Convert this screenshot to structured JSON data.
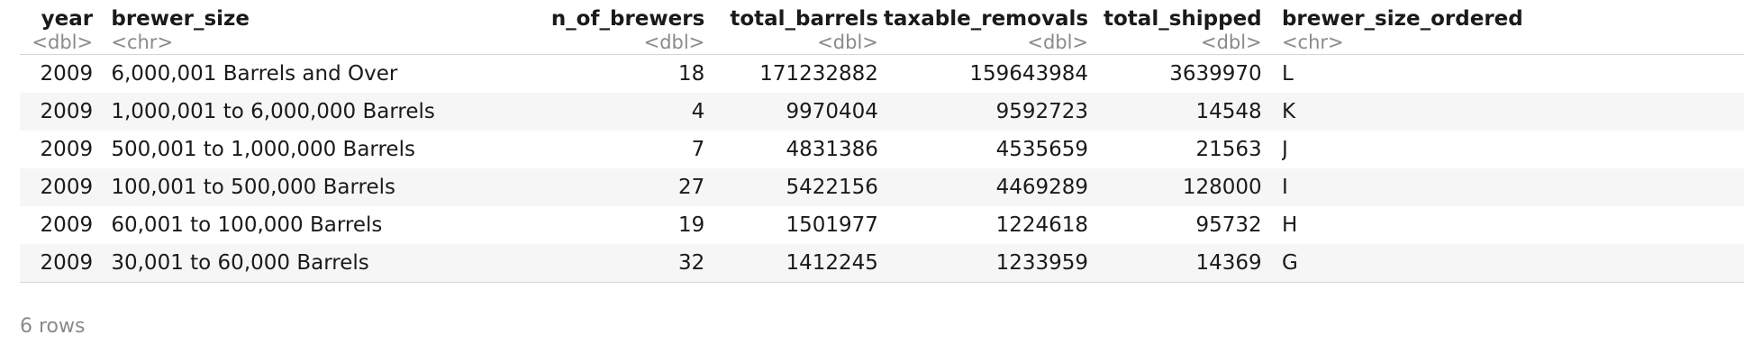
{
  "columns": [
    {
      "name": "year",
      "type": "<dbl>"
    },
    {
      "name": "brewer_size",
      "type": "<chr>"
    },
    {
      "name": "n_of_brewers",
      "type": "<dbl>"
    },
    {
      "name": "total_barrels",
      "type": "<dbl>"
    },
    {
      "name": "taxable_removals",
      "type": "<dbl>"
    },
    {
      "name": "total_shipped",
      "type": "<dbl>"
    },
    {
      "name": "brewer_size_ordered",
      "type": "<chr>"
    }
  ],
  "rows": [
    [
      "2009",
      "6,000,001 Barrels and Over",
      "18",
      "171232882",
      "159643984",
      "3639970",
      "L"
    ],
    [
      "2009",
      "1,000,001 to 6,000,000 Barrels",
      "4",
      "9970404",
      "9592723",
      "14548",
      "K"
    ],
    [
      "2009",
      "500,001 to 1,000,000 Barrels",
      "7",
      "4831386",
      "4535659",
      "21563",
      "J"
    ],
    [
      "2009",
      "100,001 to 500,000 Barrels",
      "27",
      "5422156",
      "4469289",
      "128000",
      "I"
    ],
    [
      "2009",
      "60,001 to 100,000 Barrels",
      "19",
      "1501977",
      "1224618",
      "95732",
      "H"
    ],
    [
      "2009",
      "30,001 to 60,000 Barrels",
      "32",
      "1412245",
      "1233959",
      "14369",
      "G"
    ]
  ],
  "footer": "6 rows",
  "colors": {
    "header_type_text": "#8a8a8a",
    "stripe": "#f6f6f6",
    "rule": "#d6d6d6"
  }
}
